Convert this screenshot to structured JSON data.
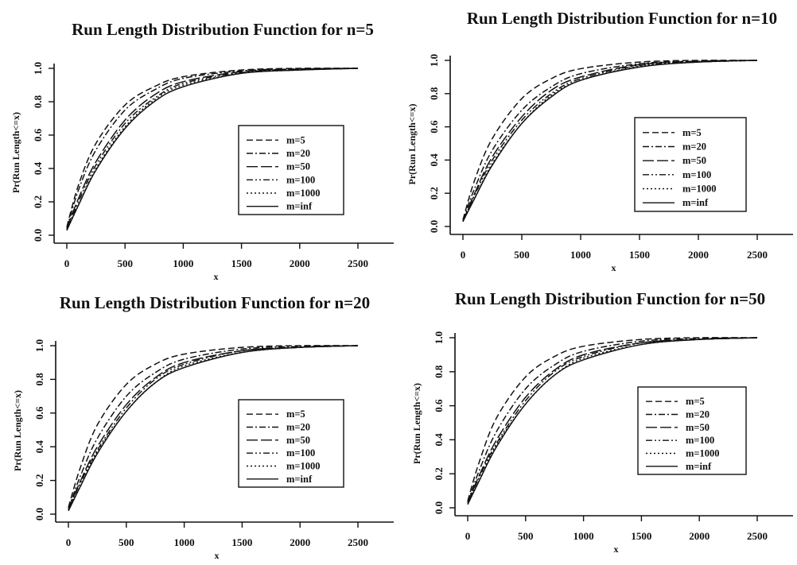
{
  "chart_data": [
    {
      "type": "line",
      "title": "Run Length Distribution Function for n=5",
      "xlabel": "x",
      "ylabel": "Pr(Run Length<=x)",
      "xlim": [
        0,
        2500
      ],
      "ylim": [
        0,
        1.0
      ],
      "xticks": [
        0,
        500,
        1000,
        1500,
        2000,
        2500
      ],
      "yticks": [
        0.0,
        0.2,
        0.4,
        0.6,
        0.8,
        1.0
      ],
      "x": [
        0,
        100,
        250,
        500,
        750,
        1000,
        1500,
        2000,
        2500
      ],
      "legend_position": "center-right",
      "series": [
        {
          "name": "m=5",
          "dash": "8,4",
          "values": [
            0.05,
            0.3,
            0.55,
            0.78,
            0.89,
            0.95,
            0.99,
            1.0,
            1.0
          ]
        },
        {
          "name": "m=20",
          "dash": "8,3,2,3",
          "values": [
            0.04,
            0.27,
            0.51,
            0.75,
            0.87,
            0.94,
            0.985,
            0.997,
            1.0
          ]
        },
        {
          "name": "m=50",
          "dash": "14,4",
          "values": [
            0.04,
            0.22,
            0.44,
            0.69,
            0.84,
            0.92,
            0.98,
            0.995,
            1.0
          ]
        },
        {
          "name": "m=100",
          "dash": "8,3,2,3,2,3",
          "values": [
            0.03,
            0.2,
            0.42,
            0.67,
            0.82,
            0.91,
            0.975,
            0.995,
            1.0
          ]
        },
        {
          "name": "m=1000",
          "dash": "2,3",
          "values": [
            0.03,
            0.18,
            0.4,
            0.65,
            0.81,
            0.9,
            0.97,
            0.99,
            1.0
          ]
        },
        {
          "name": "m=inf",
          "dash": "",
          "values": [
            0.03,
            0.18,
            0.39,
            0.64,
            0.8,
            0.89,
            0.97,
            0.99,
            1.0
          ]
        }
      ]
    },
    {
      "type": "line",
      "title": "Run Length Distribution Function for n=10",
      "xlabel": "x",
      "ylabel": "Pr(Run Length<=x)",
      "xlim": [
        0,
        2500
      ],
      "ylim": [
        0,
        1.0
      ],
      "xticks": [
        0,
        500,
        1000,
        1500,
        2000,
        2500
      ],
      "yticks": [
        0.0,
        0.2,
        0.4,
        0.6,
        0.8,
        1.0
      ],
      "x": [
        0,
        100,
        250,
        500,
        750,
        1000,
        1500,
        2000,
        2500
      ],
      "legend_position": "center-right",
      "series": [
        {
          "name": "m=5",
          "dash": "8,4",
          "values": [
            0.04,
            0.28,
            0.53,
            0.77,
            0.89,
            0.95,
            0.99,
            1.0,
            1.0
          ]
        },
        {
          "name": "m=20",
          "dash": "8,3,2,3",
          "values": [
            0.04,
            0.23,
            0.46,
            0.7,
            0.84,
            0.92,
            0.98,
            0.995,
            1.0
          ]
        },
        {
          "name": "m=50",
          "dash": "14,4",
          "values": [
            0.03,
            0.2,
            0.42,
            0.66,
            0.82,
            0.9,
            0.975,
            0.995,
            1.0
          ]
        },
        {
          "name": "m=100",
          "dash": "8,3,2,3,2,3",
          "values": [
            0.03,
            0.19,
            0.4,
            0.64,
            0.8,
            0.89,
            0.97,
            0.99,
            1.0
          ]
        },
        {
          "name": "m=1000",
          "dash": "2,3",
          "values": [
            0.03,
            0.17,
            0.38,
            0.62,
            0.79,
            0.88,
            0.965,
            0.99,
            1.0
          ]
        },
        {
          "name": "m=inf",
          "dash": "",
          "values": [
            0.03,
            0.17,
            0.37,
            0.62,
            0.78,
            0.88,
            0.96,
            0.99,
            1.0
          ]
        }
      ]
    },
    {
      "type": "line",
      "title": "Run Length Distribution Function for n=20",
      "xlabel": "x",
      "ylabel": "Pr(Run Length<=x)",
      "xlim": [
        0,
        2500
      ],
      "ylim": [
        0,
        1.0
      ],
      "xticks": [
        0,
        500,
        1000,
        1500,
        2000,
        2500
      ],
      "yticks": [
        0.0,
        0.2,
        0.4,
        0.6,
        0.8,
        1.0
      ],
      "x": [
        0,
        100,
        250,
        500,
        750,
        1000,
        1500,
        2000,
        2500
      ],
      "legend_position": "center-right",
      "series": [
        {
          "name": "m=5",
          "dash": "8,4",
          "values": [
            0.04,
            0.27,
            0.53,
            0.77,
            0.89,
            0.95,
            0.99,
            1.0,
            1.0
          ]
        },
        {
          "name": "m=20",
          "dash": "8,3,2,3",
          "values": [
            0.03,
            0.22,
            0.45,
            0.7,
            0.84,
            0.92,
            0.98,
            0.995,
            1.0
          ]
        },
        {
          "name": "m=50",
          "dash": "14,4",
          "values": [
            0.03,
            0.19,
            0.4,
            0.65,
            0.81,
            0.9,
            0.97,
            0.99,
            1.0
          ]
        },
        {
          "name": "m=100",
          "dash": "8,3,2,3,2,3",
          "values": [
            0.03,
            0.18,
            0.38,
            0.63,
            0.8,
            0.89,
            0.97,
            0.99,
            1.0
          ]
        },
        {
          "name": "m=1000",
          "dash": "2,3",
          "values": [
            0.02,
            0.16,
            0.37,
            0.61,
            0.78,
            0.88,
            0.96,
            0.99,
            1.0
          ]
        },
        {
          "name": "m=inf",
          "dash": "",
          "values": [
            0.02,
            0.16,
            0.36,
            0.61,
            0.78,
            0.87,
            0.96,
            0.99,
            1.0
          ]
        }
      ]
    },
    {
      "type": "line",
      "title": "Run Length Distribution Function for n=50",
      "xlabel": "x",
      "ylabel": "Pr(Run Length<=x)",
      "xlim": [
        0,
        2500
      ],
      "ylim": [
        0,
        1.0
      ],
      "xticks": [
        0,
        500,
        1000,
        1500,
        2000,
        2500
      ],
      "yticks": [
        0.0,
        0.2,
        0.4,
        0.6,
        0.8,
        1.0
      ],
      "x": [
        0,
        100,
        250,
        500,
        750,
        1000,
        1500,
        2000,
        2500
      ],
      "legend_position": "bottom-right",
      "series": [
        {
          "name": "m=5",
          "dash": "8,4",
          "values": [
            0.04,
            0.27,
            0.53,
            0.77,
            0.89,
            0.95,
            0.99,
            1.0,
            1.0
          ]
        },
        {
          "name": "m=20",
          "dash": "8,3,2,3",
          "values": [
            0.03,
            0.22,
            0.45,
            0.7,
            0.84,
            0.92,
            0.98,
            0.995,
            1.0
          ]
        },
        {
          "name": "m=50",
          "dash": "14,4",
          "values": [
            0.03,
            0.19,
            0.4,
            0.65,
            0.81,
            0.9,
            0.97,
            0.99,
            1.0
          ]
        },
        {
          "name": "m=100",
          "dash": "8,3,2,3,2,3",
          "values": [
            0.03,
            0.18,
            0.38,
            0.63,
            0.8,
            0.89,
            0.97,
            0.99,
            1.0
          ]
        },
        {
          "name": "m=1000",
          "dash": "2,3",
          "values": [
            0.02,
            0.16,
            0.37,
            0.61,
            0.78,
            0.88,
            0.96,
            0.99,
            1.0
          ]
        },
        {
          "name": "m=inf",
          "dash": "",
          "values": [
            0.02,
            0.16,
            0.36,
            0.61,
            0.78,
            0.87,
            0.96,
            0.99,
            1.0
          ]
        }
      ]
    }
  ]
}
